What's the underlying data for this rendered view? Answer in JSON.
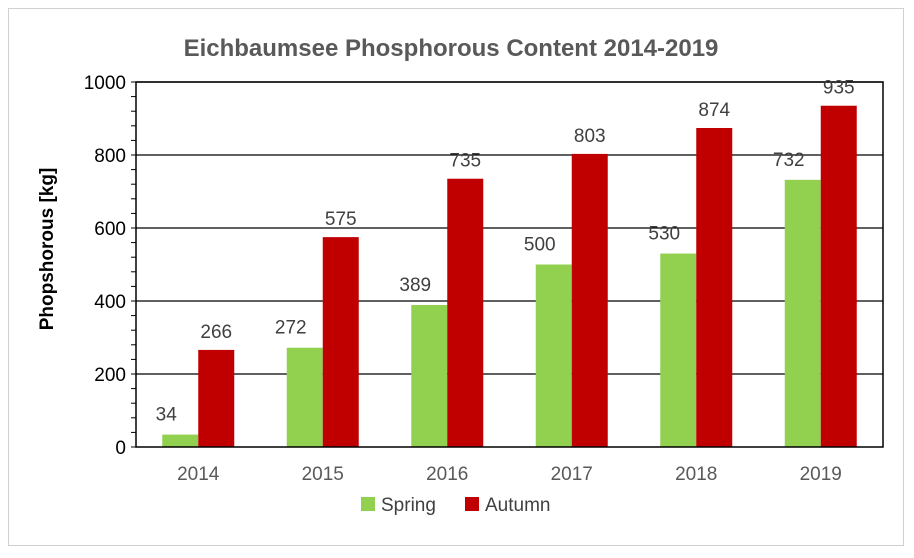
{
  "chart_data": {
    "type": "bar",
    "title": "Eichbaumsee Phosphorous Content  2014-2019",
    "xlabel": "",
    "ylabel": "Phopshorous [kg]",
    "ylim": [
      0,
      1000
    ],
    "yticks": [
      0,
      200,
      400,
      600,
      800,
      1000
    ],
    "yticks_labels": [
      "0",
      "200",
      "400",
      "600",
      "800",
      "1000"
    ],
    "grid": true,
    "legend_position": "bottom",
    "categories": [
      "2014",
      "2015",
      "2016",
      "2017",
      "2018",
      "2019"
    ],
    "series": [
      {
        "name": "Spring",
        "color": "#92d050",
        "values": [
          34,
          272,
          389,
          500,
          530,
          732
        ]
      },
      {
        "name": "Autumn",
        "color": "#c00000",
        "values": [
          266,
          575,
          735,
          803,
          874,
          935
        ]
      }
    ]
  }
}
